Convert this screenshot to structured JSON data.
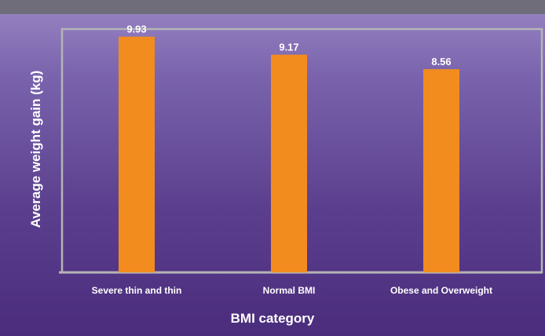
{
  "colors": {
    "bar": "#f28c1f",
    "axis": "#b5b5b5",
    "text": "#ffffff"
  },
  "chart_data": {
    "type": "bar",
    "categories": [
      "Severe thin and thin",
      "Normal BMI",
      "Obese and Overweight"
    ],
    "values": [
      9.93,
      9.17,
      8.56
    ],
    "value_labels": [
      "9.93",
      "9.17",
      "8.56"
    ],
    "title": "",
    "xlabel": "BMI category",
    "ylabel": "Average weight gain (kg)",
    "ylim": [
      0,
      10.25
    ],
    "grid": false,
    "legend": "none"
  }
}
